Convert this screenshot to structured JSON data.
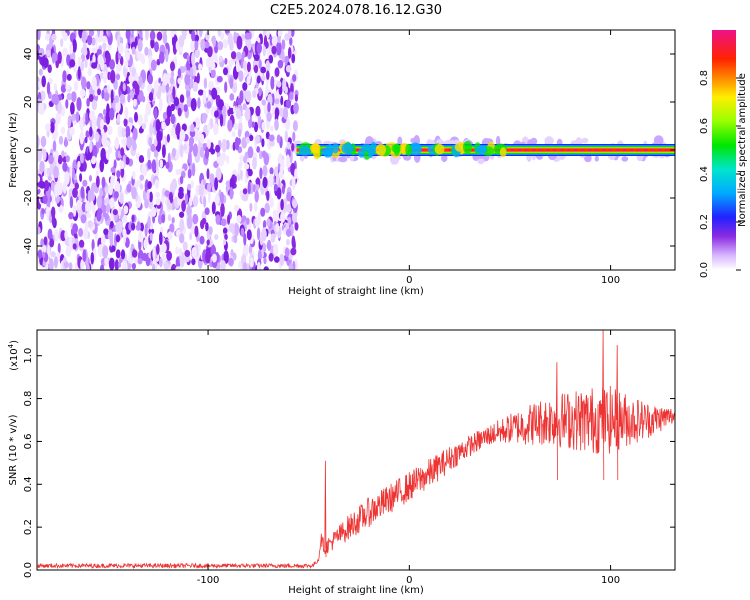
{
  "title": "C2E5.2024.078.16.12.G30",
  "chart_data": [
    {
      "type": "heatmap",
      "name": "spectrogram",
      "xlabel": "Height of straight line (km)",
      "ylabel": "Frequency (Hz)",
      "xlim": [
        -185,
        132
      ],
      "ylim": [
        -50,
        50
      ],
      "xticks": [
        -100,
        0,
        100
      ],
      "yticks": [
        -40,
        -20,
        0,
        20,
        40
      ],
      "noise_region_x": [
        -185,
        -56
      ],
      "signal_band": {
        "x_start": -56,
        "x_end": 132,
        "center_frequency": 0,
        "halfwidth_hz": 2,
        "dominant_amplitude": 0.9
      },
      "colorbar": {
        "label": "Normalized spectral amplitude",
        "range": [
          0,
          1
        ],
        "ticks": [
          0.0,
          0.2,
          0.4,
          0.6,
          0.8
        ],
        "tick_labels": [
          "0.0",
          "0.2",
          "0.4",
          "0.6",
          "0.8"
        ]
      }
    },
    {
      "type": "line",
      "name": "snr",
      "xlabel": "Height of straight line (km)",
      "ylabel": "SNR (10 * v/v)",
      "multiplier_label": "(x10",
      "multiplier_exponent": "4",
      "xlim": [
        -185,
        132
      ],
      "ylim": [
        0,
        1.12
      ],
      "xticks": [
        -100,
        0,
        100
      ],
      "yticks": [
        0.0,
        0.2,
        0.4,
        0.6,
        0.8,
        1.0
      ],
      "color": "#ee3333",
      "envelope": {
        "x": [
          -185,
          -48,
          -45,
          -44,
          -42,
          -40,
          -30,
          -20,
          -10,
          0,
          10,
          20,
          30,
          40,
          50,
          60,
          70,
          80,
          90,
          100,
          110,
          120,
          132
        ],
        "mean": [
          0.02,
          0.02,
          0.05,
          0.15,
          0.1,
          0.12,
          0.2,
          0.27,
          0.33,
          0.39,
          0.45,
          0.52,
          0.58,
          0.63,
          0.66,
          0.68,
          0.7,
          0.7,
          0.7,
          0.7,
          0.7,
          0.7,
          0.72
        ],
        "noise": [
          0.01,
          0.01,
          0.01,
          0.03,
          0.03,
          0.04,
          0.06,
          0.07,
          0.07,
          0.07,
          0.07,
          0.06,
          0.05,
          0.05,
          0.07,
          0.1,
          0.12,
          0.14,
          0.16,
          0.16,
          0.12,
          0.08,
          0.04
        ]
      },
      "spikes": [
        {
          "x": -42,
          "y": 0.51
        },
        {
          "x": 96,
          "y": 1.12
        },
        {
          "x": 103,
          "y": 1.05
        },
        {
          "x": 73,
          "y": 0.97
        }
      ]
    }
  ]
}
